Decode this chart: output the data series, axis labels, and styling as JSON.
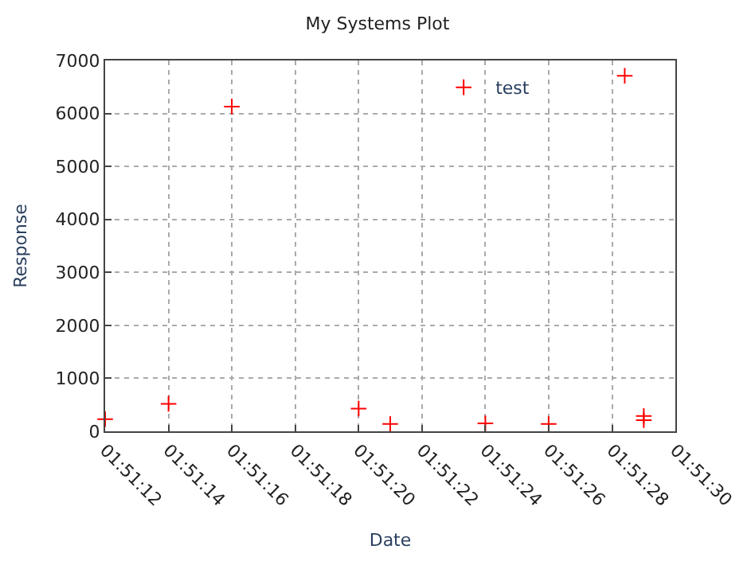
{
  "chart_data": {
    "type": "scatter",
    "title": "My Systems Plot",
    "xlabel": "Date",
    "ylabel": "Response",
    "series": [
      {
        "name": "test",
        "color": "#ff0000",
        "x": [
          1.853333,
          1.853889,
          1.854444,
          1.855556,
          1.855833,
          1.856667,
          1.857222,
          1.857889,
          1.858056,
          1.858056
        ],
        "values": [
          230,
          520,
          6130,
          430,
          140,
          150,
          140,
          6710,
          290,
          210
        ]
      }
    ],
    "xlim": [
      1.853333,
      1.858333
    ],
    "xticks": [
      {
        "value": 1.853333,
        "label": "01:51:12"
      },
      {
        "value": 1.853889,
        "label": "01:51:14"
      },
      {
        "value": 1.854444,
        "label": "01:51:16"
      },
      {
        "value": 1.855,
        "label": "01:51:18"
      },
      {
        "value": 1.855556,
        "label": "01:51:20"
      },
      {
        "value": 1.856111,
        "label": "01:51:22"
      },
      {
        "value": 1.856667,
        "label": "01:51:24"
      },
      {
        "value": 1.857222,
        "label": "01:51:26"
      },
      {
        "value": 1.857778,
        "label": "01:51:28"
      },
      {
        "value": 1.858333,
        "label": "01:51:30"
      }
    ],
    "ylim": [
      0,
      7000
    ],
    "yticks": [
      0,
      1000,
      2000,
      3000,
      4000,
      5000,
      6000,
      7000
    ],
    "grid": true,
    "legend": "top right",
    "marker": "cross"
  }
}
